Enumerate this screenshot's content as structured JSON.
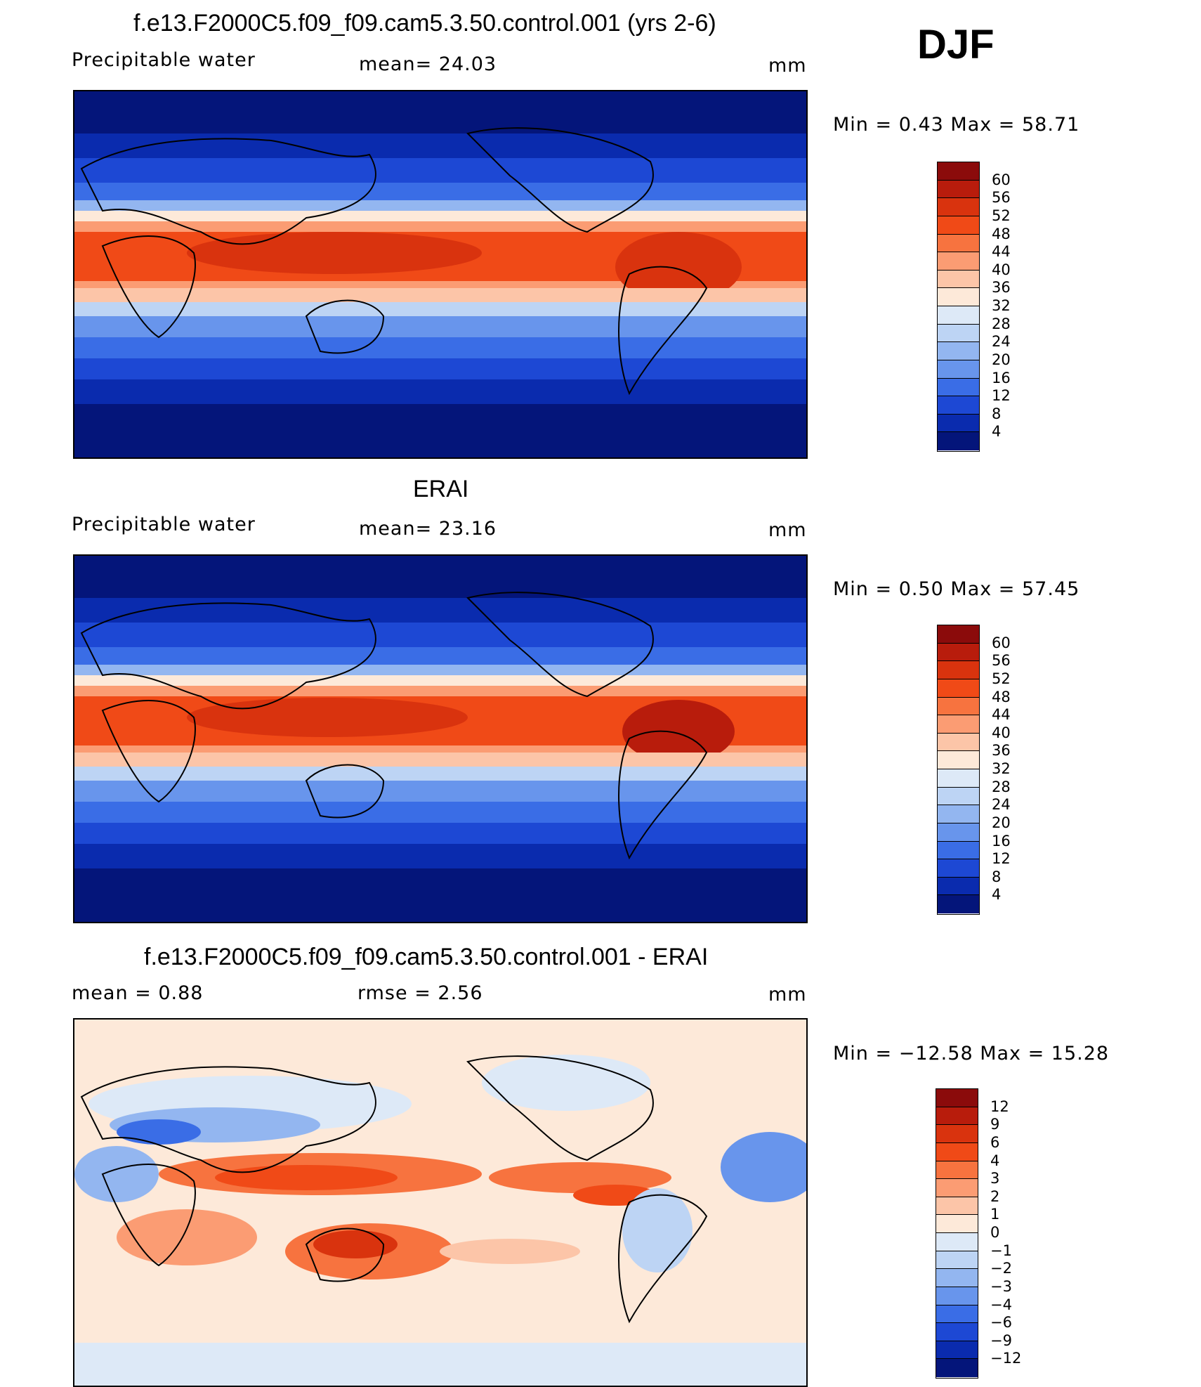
{
  "header": {
    "title": "f.e13.F2000C5.f09_f09.cam5.3.50.control.001 (yrs 2-6)",
    "season": "DJF"
  },
  "panels": [
    {
      "title": "f.e13.F2000C5.f09_f09.cam5.3.50.control.001 (yrs 2-6)",
      "left": "Precipitable  water",
      "middle": "mean=   24.03",
      "units": "mm",
      "minmax": "Min  =     0.43  Max  =    58.71",
      "colorbar": {
        "labels": [
          "60",
          "56",
          "52",
          "48",
          "44",
          "40",
          "36",
          "32",
          "28",
          "24",
          "20",
          "16",
          "12",
          "8",
          "4"
        ],
        "colors": [
          "#8b0b0b",
          "#b81c0c",
          "#d9330e",
          "#f04a17",
          "#f7733f",
          "#fb9c73",
          "#fcc5a8",
          "#fde9d9",
          "#dde9f7",
          "#bdd4f4",
          "#93b6f0",
          "#6895ec",
          "#3a6de6",
          "#1d48d4",
          "#0a2bae",
          "#04157a"
        ]
      }
    },
    {
      "title": "ERAI",
      "left": "Precipitable  water",
      "middle": "mean=   23.16",
      "units": "mm",
      "minmax": "Min  =     0.50  Max  =    57.45",
      "colorbar": {
        "labels": [
          "60",
          "56",
          "52",
          "48",
          "44",
          "40",
          "36",
          "32",
          "28",
          "24",
          "20",
          "16",
          "12",
          "8",
          "4"
        ],
        "colors": [
          "#8b0b0b",
          "#b81c0c",
          "#d9330e",
          "#f04a17",
          "#f7733f",
          "#fb9c73",
          "#fcc5a8",
          "#fde9d9",
          "#dde9f7",
          "#bdd4f4",
          "#93b6f0",
          "#6895ec",
          "#3a6de6",
          "#1d48d4",
          "#0a2bae",
          "#04157a"
        ]
      }
    },
    {
      "title": "f.e13.F2000C5.f09_f09.cam5.3.50.control.001 - ERAI",
      "left": "mean  =     0.88",
      "middle": "rmse  =     2.56",
      "units": "mm",
      "minmax": "Min  = −12.58  Max  =    15.28",
      "colorbar": {
        "labels": [
          "12",
          "9",
          "6",
          "4",
          "3",
          "2",
          "1",
          "0",
          "−1",
          "−2",
          "−3",
          "−4",
          "−6",
          "−9",
          "−12"
        ],
        "colors": [
          "#8b0b0b",
          "#b81c0c",
          "#d9330e",
          "#f04a17",
          "#f7733f",
          "#fb9c73",
          "#fcc5a8",
          "#fde9d9",
          "#dde9f7",
          "#bdd4f4",
          "#93b6f0",
          "#6895ec",
          "#3a6de6",
          "#1d48d4",
          "#0a2bae",
          "#04157a"
        ]
      }
    }
  ]
}
